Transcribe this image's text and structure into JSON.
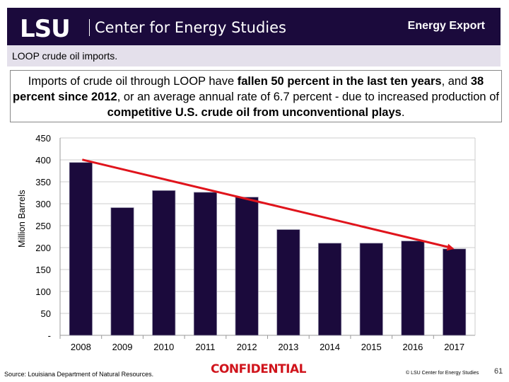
{
  "header": {
    "logo": "LSU",
    "center": "Center for Energy Studies",
    "section": "Energy Export"
  },
  "subtitle": "LOOP crude oil imports.",
  "summary": {
    "p1": "Imports of crude oil through LOOP have ",
    "b1": "fallen 50 percent in the last ten years",
    "p2": ", and ",
    "b2": "38 percent since 2012",
    "p3": ", or an average annual rate of 6.7 percent - due to increased production of ",
    "b3": "competitive U.S. crude oil from unconventional plays",
    "p4": "."
  },
  "chart_data": {
    "type": "bar",
    "categories": [
      "2008",
      "2009",
      "2010",
      "2011",
      "2012",
      "2013",
      "2014",
      "2015",
      "2016",
      "2017"
    ],
    "values": [
      394,
      291,
      330,
      326,
      315,
      241,
      210,
      210,
      215,
      197
    ],
    "ylabel": "Million Barrels",
    "ylim": [
      0,
      450
    ],
    "yticks": [
      "-",
      "50",
      "100",
      "150",
      "200",
      "250",
      "300",
      "350",
      "400",
      "450"
    ],
    "grid": true,
    "bar_color": "#1b0a3c",
    "trend_arrow": {
      "from": "2008",
      "to": "2017",
      "color": "#e0141c"
    }
  },
  "footer": {
    "source": "Source:  Louisiana Department of Natural Resources.",
    "confidential": "CONFIDENTIAL",
    "copyright": "© LSU Center for Energy Studies",
    "page": "61"
  }
}
